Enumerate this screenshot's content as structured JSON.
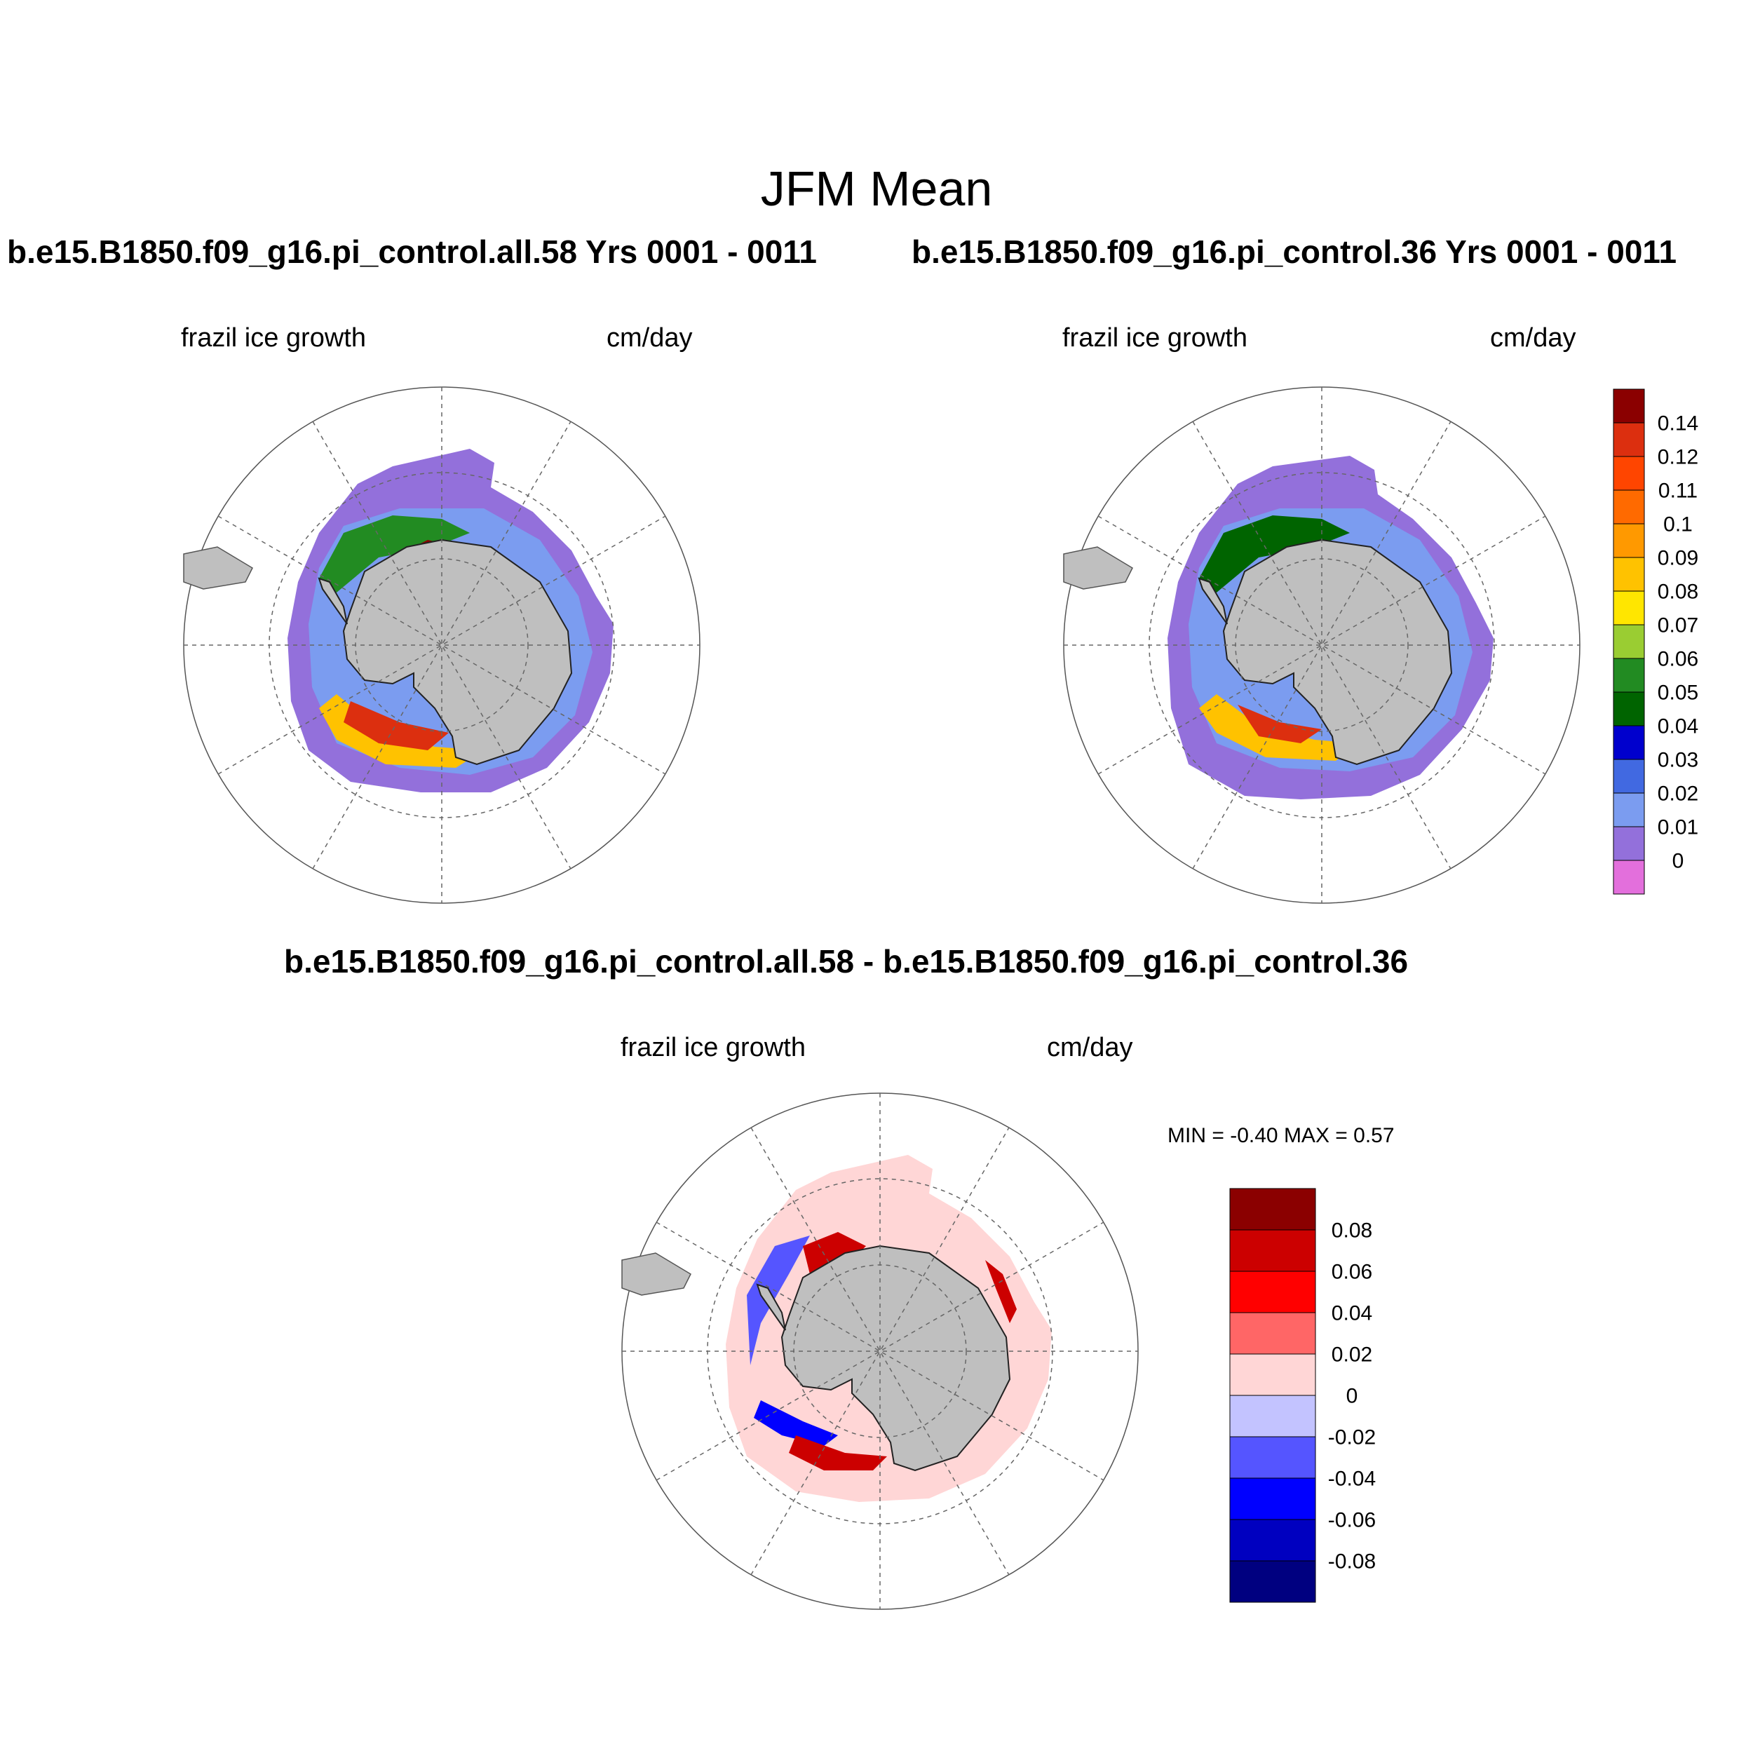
{
  "title": "JFM Mean",
  "panels": {
    "p1": {
      "title": "b.e15.B1850.f09_g16.pi_control.all.58  Yrs 0001 - 0011",
      "variable": "frazil ice growth",
      "units": "cm/day"
    },
    "p2": {
      "title": "b.e15.B1850.f09_g16.pi_control.36  Yrs 0001 - 0011",
      "variable": "frazil ice growth",
      "units": "cm/day"
    },
    "diff": {
      "title": "b.e15.B1850.f09_g16.pi_control.all.58 - b.e15.B1850.f09_g16.pi_control.36",
      "variable": "frazil ice growth",
      "units": "cm/day",
      "min_label": "MIN =",
      "min_value": "-0.40",
      "max_label": "MAX =",
      "max_value": "0.57"
    }
  },
  "legend_main": {
    "colors": [
      "#8b0000",
      "#dc2f0f",
      "#ff4500",
      "#ff6a00",
      "#ff9900",
      "#ffc200",
      "#ffe600",
      "#9acd32",
      "#228b22",
      "#006400",
      "#0000cd",
      "#4169e1",
      "#7b9cf0",
      "#9370db",
      "#e36fdc"
    ],
    "labels": [
      "0.14",
      "0.12",
      "0.11",
      "0.1",
      "0.09",
      "0.08",
      "0.07",
      "0.06",
      "0.05",
      "0.04",
      "0.03",
      "0.02",
      "0.01",
      "0"
    ]
  },
  "legend_diff": {
    "colors": [
      "#8b0000",
      "#cc0000",
      "#ff0000",
      "#ff6666",
      "#ffd6d6",
      "#c3c3ff",
      "#5555ff",
      "#0000ff",
      "#0000c0",
      "#000080"
    ],
    "labels": [
      "0.08",
      "0.06",
      "0.04",
      "0.02",
      "0",
      "-0.02",
      "-0.04",
      "-0.06",
      "-0.08"
    ]
  },
  "map_colors": {
    "land": "#bfbfbf",
    "ocean": "#ffffff",
    "ice_base": "#9370db",
    "diff_base": "#ffd6d6"
  }
}
